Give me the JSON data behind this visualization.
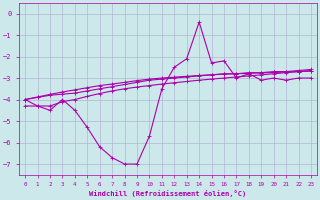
{
  "xlabel": "Windchill (Refroidissement éolien,°C)",
  "background_color": "#cce8ea",
  "grid_color": "#aaaacc",
  "line_color": "#aa00aa",
  "hours": [
    0,
    1,
    2,
    3,
    4,
    5,
    6,
    7,
    8,
    9,
    10,
    11,
    12,
    13,
    14,
    15,
    16,
    17,
    18,
    19,
    20,
    21,
    22,
    23
  ],
  "y_main": [
    -4.0,
    -4.3,
    -4.5,
    -4.0,
    -4.5,
    -5.3,
    -6.2,
    -6.7,
    -7.0,
    -7.0,
    -5.7,
    -3.5,
    -2.5,
    -2.1,
    -0.4,
    -2.3,
    -2.2,
    -3.0,
    -2.8,
    -3.1,
    -3.0,
    -3.1,
    -3.0,
    -3.0
  ],
  "y_line2": [
    -4.0,
    -3.9,
    -3.8,
    -3.75,
    -3.7,
    -3.6,
    -3.5,
    -3.4,
    -3.3,
    -3.2,
    -3.1,
    -3.05,
    -3.0,
    -2.95,
    -2.9,
    -2.85,
    -2.8,
    -2.8,
    -2.75,
    -2.75,
    -2.7,
    -2.7,
    -2.65,
    -2.6
  ],
  "y_line3": [
    -4.0,
    -3.88,
    -3.76,
    -3.65,
    -3.55,
    -3.45,
    -3.35,
    -3.28,
    -3.2,
    -3.12,
    -3.05,
    -3.0,
    -2.96,
    -2.92,
    -2.88,
    -2.85,
    -2.82,
    -2.8,
    -2.78,
    -2.76,
    -2.74,
    -2.72,
    -2.7,
    -2.68
  ],
  "y_line4": [
    -4.3,
    -4.3,
    -4.3,
    -4.1,
    -4.0,
    -3.85,
    -3.72,
    -3.6,
    -3.5,
    -3.42,
    -3.35,
    -3.28,
    -3.22,
    -3.16,
    -3.1,
    -3.05,
    -3.0,
    -2.95,
    -2.9,
    -2.85,
    -2.8,
    -2.75,
    -2.7,
    -2.65
  ],
  "ylim": [
    -7.5,
    0.5
  ],
  "xlim": [
    -0.5,
    23.5
  ]
}
